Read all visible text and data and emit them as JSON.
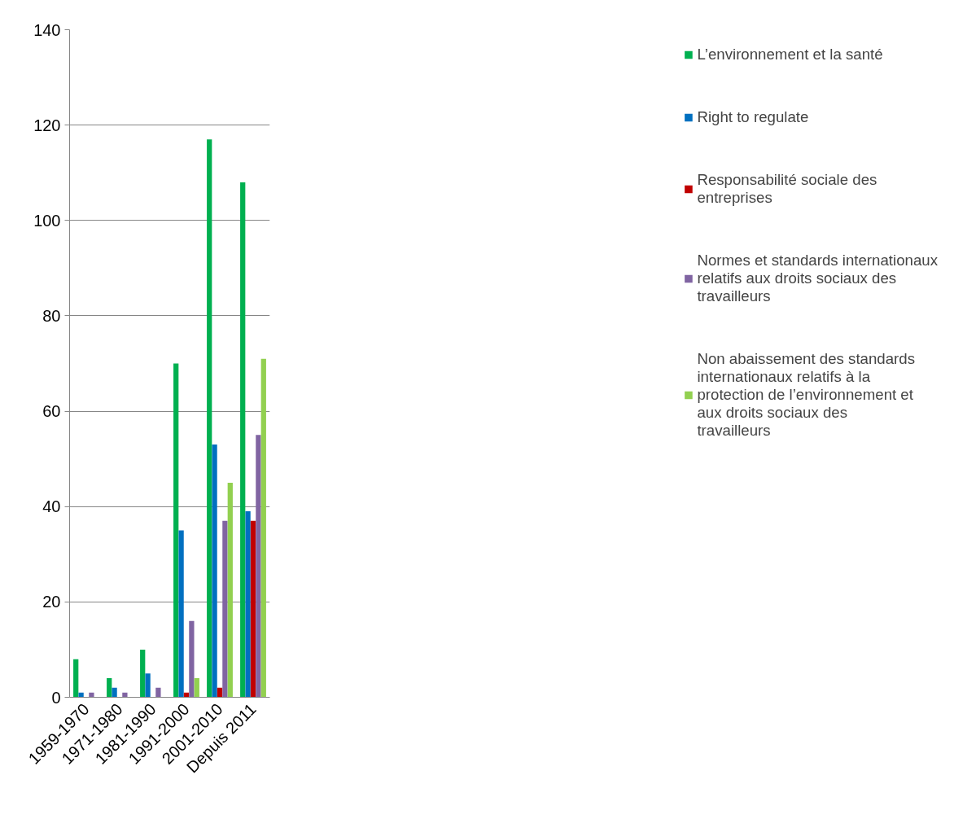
{
  "chart_data": {
    "type": "bar",
    "categories": [
      "1959-1970",
      "1971-1980",
      "1981-1990",
      "1991-2000",
      "2001-2010",
      "Depuis 2011"
    ],
    "series": [
      {
        "name": "L’environnement et la santé",
        "color": "#00b050",
        "values": [
          8,
          4,
          10,
          70,
          117,
          108
        ]
      },
      {
        "name": "Right to regulate",
        "color": "#0070c0",
        "values": [
          1,
          2,
          5,
          35,
          53,
          39
        ]
      },
      {
        "name": "Responsabilité sociale des entreprises",
        "color": "#c00000",
        "values": [
          0,
          0,
          0,
          1,
          2,
          37
        ]
      },
      {
        "name": "Normes et standards internationaux relatifs aux droits sociaux des travailleurs",
        "color": "#8064a2",
        "values": [
          1,
          1,
          2,
          16,
          37,
          55
        ]
      },
      {
        "name": "Non abaissement des standards internationaux relatifs à la protection de l’environnement et aux droits sociaux des travailleurs",
        "color": "#92d050",
        "values": [
          0,
          0,
          0,
          4,
          45,
          71
        ]
      }
    ],
    "ylim": [
      0,
      140
    ],
    "yticks": [
      0,
      20,
      40,
      60,
      80,
      100,
      120,
      140
    ],
    "grid": "y",
    "legend": "right"
  }
}
